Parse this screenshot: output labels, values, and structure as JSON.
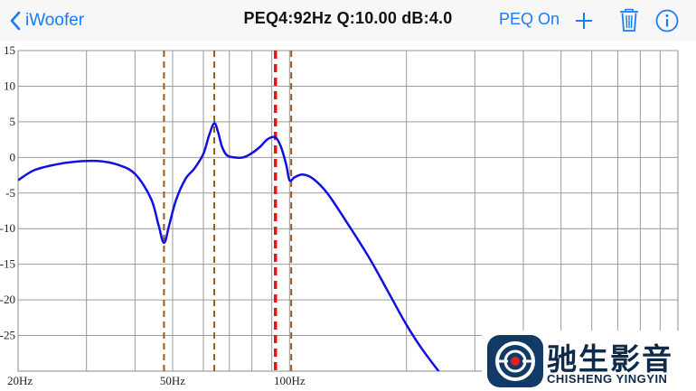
{
  "nav": {
    "back_label": "iWoofer",
    "title": "PEQ4:92Hz Q:10.00 dB:4.0",
    "peq_toggle_label": "PEQ On",
    "icons": [
      "chevron-left-icon",
      "plus-icon",
      "trash-icon",
      "info-icon"
    ],
    "accent_color": "#1a7cf5"
  },
  "chart_data": {
    "type": "line",
    "title": "",
    "xlabel": "",
    "ylabel": "",
    "x_scale": "log",
    "xlim": [
      20,
      1000
    ],
    "ylim": [
      -30,
      15
    ],
    "grid": true,
    "x_tick_labels": [
      {
        "hz": 20,
        "label": "20Hz"
      },
      {
        "hz": 50,
        "label": "50Hz"
      },
      {
        "hz": 100,
        "label": "100Hz"
      }
    ],
    "y_ticks": [
      15,
      10,
      5,
      0,
      -5,
      -10,
      -15,
      -20,
      -25
    ],
    "series": [
      {
        "color": "#1010e0",
        "x": [
          20,
          22,
          25,
          28,
          32,
          36,
          40,
          44,
          46,
          47.5,
          49,
          51,
          54,
          57,
          60,
          62,
          64,
          65.5,
          67,
          69,
          72,
          76,
          80,
          84,
          88,
          92,
          95,
          98,
          100,
          103,
          108,
          115,
          125,
          140,
          160,
          180,
          200,
          220,
          250
        ],
        "y": [
          -3.2,
          -1.8,
          -1.0,
          -0.6,
          -0.5,
          -1.0,
          -2.3,
          -5.8,
          -9.5,
          -12.0,
          -9.5,
          -6.0,
          -3.0,
          -1.5,
          0.5,
          3.0,
          4.8,
          3.5,
          1.5,
          0.3,
          0.0,
          0.0,
          0.6,
          1.5,
          2.6,
          2.8,
          1.5,
          -1.0,
          -3.2,
          -2.8,
          -2.4,
          -3.0,
          -5.0,
          -9.0,
          -14.0,
          -19.0,
          -23.5,
          -27.0,
          -31.0
        ]
      }
    ],
    "filter_markers": [
      {
        "hz": 47.5,
        "color": "#9a5a1e",
        "selected": false
      },
      {
        "hz": 64,
        "color": "#9a5a1e",
        "selected": false
      },
      {
        "hz": 92,
        "color": "#ee1111",
        "selected": true
      },
      {
        "hz": 101,
        "color": "#9a5a1e",
        "selected": false
      }
    ]
  },
  "watermark": {
    "text_cn": "驰生影音",
    "text_en": "CHISHENG YINGYIN",
    "logo_icon": "chisheng-logo-icon"
  }
}
